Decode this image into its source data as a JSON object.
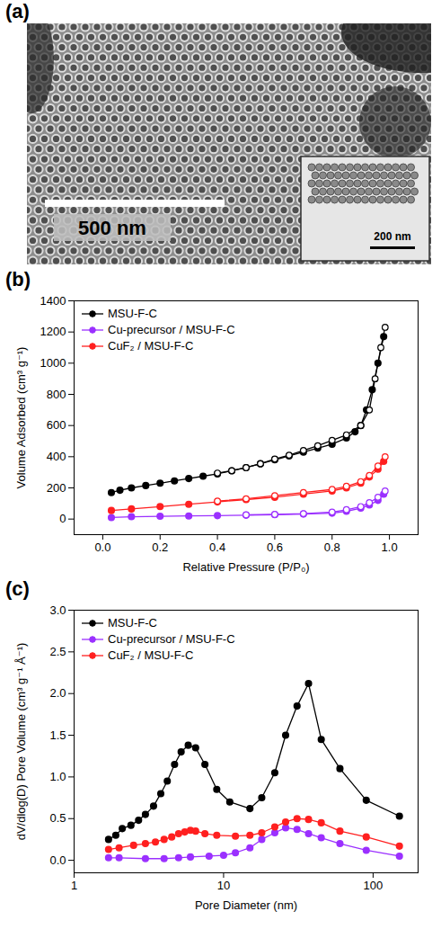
{
  "image": {
    "panel_label": "(a)",
    "scale_bar": "500 nm",
    "inset_scale_bar": "200 nm"
  },
  "chart_data": [
    {
      "type": "line",
      "panel_label": "(b)",
      "xlabel": "Relative Pressure (P/P₀)",
      "ylabel": "Volume Adsorbed (cm³ g⁻¹)",
      "xlim": [
        -0.1,
        1.1
      ],
      "xticks": [
        {
          "value": 0,
          "label": "0.0"
        },
        {
          "value": 0.2,
          "label": "0.2"
        },
        {
          "value": 0.4,
          "label": "0.4"
        },
        {
          "value": 0.6,
          "label": "0.6"
        },
        {
          "value": 0.8,
          "label": "0.8"
        },
        {
          "value": 1,
          "label": "1.0"
        }
      ],
      "ylim": [
        -100,
        1400
      ],
      "yticks": [
        0,
        200,
        400,
        600,
        800,
        1000,
        1200,
        1400
      ],
      "grid": false,
      "legend": "top-left",
      "series": [
        {
          "name": "MSU-F-C",
          "color": "#000000",
          "marker": "circle",
          "x": [
            0.03,
            0.06,
            0.1,
            0.15,
            0.2,
            0.25,
            0.3,
            0.35,
            0.4,
            0.45,
            0.5,
            0.55,
            0.6,
            0.65,
            0.7,
            0.75,
            0.8,
            0.85,
            0.88,
            0.9,
            0.92,
            0.94,
            0.96,
            0.98
          ],
          "values": [
            170,
            185,
            200,
            215,
            230,
            245,
            260,
            275,
            290,
            310,
            330,
            355,
            380,
            405,
            430,
            455,
            480,
            520,
            560,
            600,
            700,
            830,
            1000,
            1170
          ],
          "desorption": {
            "x": [
              0.985,
              0.97,
              0.95,
              0.93,
              0.9,
              0.85,
              0.8,
              0.75,
              0.7,
              0.65,
              0.6,
              0.55,
              0.5,
              0.45,
              0.4
            ],
            "values": [
              1230,
              1100,
              900,
              700,
              600,
              540,
              505,
              470,
              440,
              410,
              385,
              355,
              330,
              310,
              295
            ]
          }
        },
        {
          "name": "Cu-precursor / MSU-F-C",
          "color": "#9b30ff",
          "marker": "circle",
          "x": [
            0.03,
            0.1,
            0.2,
            0.3,
            0.4,
            0.5,
            0.6,
            0.7,
            0.8,
            0.85,
            0.9,
            0.93,
            0.96,
            0.98
          ],
          "values": [
            10,
            15,
            18,
            20,
            22,
            25,
            28,
            32,
            38,
            50,
            70,
            90,
            120,
            160
          ],
          "desorption": {
            "x": [
              0.985,
              0.96,
              0.93,
              0.9,
              0.85,
              0.8,
              0.7,
              0.6,
              0.5
            ],
            "values": [
              180,
              140,
              105,
              80,
              60,
              45,
              35,
              30,
              27
            ]
          }
        },
        {
          "name": "CuF₂ / MSU-F-C",
          "color": "#ff2020",
          "marker": "circle",
          "x": [
            0.03,
            0.1,
            0.2,
            0.3,
            0.4,
            0.5,
            0.6,
            0.7,
            0.8,
            0.85,
            0.9,
            0.93,
            0.96,
            0.98
          ],
          "values": [
            55,
            65,
            80,
            95,
            110,
            125,
            140,
            160,
            180,
            200,
            230,
            270,
            320,
            370
          ],
          "desorption": {
            "x": [
              0.985,
              0.96,
              0.93,
              0.9,
              0.85,
              0.8,
              0.7,
              0.6,
              0.5,
              0.4
            ],
            "values": [
              400,
              340,
              280,
              240,
              210,
              190,
              170,
              150,
              130,
              115
            ]
          }
        }
      ]
    },
    {
      "type": "line",
      "panel_label": "(c)",
      "xlabel": "Pore Diameter (nm)",
      "ylabel": "dV/dlog(D) Pore Volume (cm³ g⁻¹ Å⁻¹)",
      "log": "x",
      "xlim": [
        1,
        200
      ],
      "xticks": [
        1,
        10,
        100
      ],
      "ylim": [
        -0.15,
        3.0
      ],
      "yticks": [
        {
          "value": 0,
          "label": "0.0"
        },
        {
          "value": 0.5,
          "label": "0.5"
        },
        {
          "value": 1,
          "label": "1.0"
        },
        {
          "value": 1.5,
          "label": "1.5"
        },
        {
          "value": 2,
          "label": "2.0"
        },
        {
          "value": 2.5,
          "label": "2.5"
        },
        {
          "value": 3,
          "label": "3.0"
        }
      ],
      "grid": false,
      "legend": "top-left",
      "series": [
        {
          "name": "MSU-F-C",
          "color": "#000000",
          "marker": "circle",
          "x": [
            1.7,
            1.9,
            2.1,
            2.4,
            2.7,
            3.0,
            3.4,
            3.8,
            4.2,
            4.7,
            5.2,
            5.8,
            6.5,
            7.5,
            9,
            11,
            15,
            18,
            22,
            26,
            31,
            37,
            45,
            60,
            90,
            150
          ],
          "values": [
            0.25,
            0.3,
            0.38,
            0.42,
            0.48,
            0.55,
            0.65,
            0.8,
            0.95,
            1.15,
            1.3,
            1.38,
            1.35,
            1.15,
            0.85,
            0.7,
            0.62,
            0.75,
            1.05,
            1.5,
            1.85,
            2.12,
            1.45,
            1.1,
            0.72,
            0.53
          ]
        },
        {
          "name": "Cu-precursor / MSU-F-C",
          "color": "#9b30ff",
          "marker": "circle",
          "x": [
            1.7,
            2,
            3,
            4,
            5,
            6,
            8,
            10,
            12,
            15,
            18,
            22,
            26,
            31,
            37,
            45,
            60,
            90,
            150
          ],
          "values": [
            0.03,
            0.03,
            0.02,
            0.02,
            0.03,
            0.04,
            0.05,
            0.06,
            0.09,
            0.15,
            0.25,
            0.33,
            0.39,
            0.37,
            0.32,
            0.27,
            0.2,
            0.12,
            0.05
          ]
        },
        {
          "name": "CuF₂ / MSU-F-C",
          "color": "#ff2020",
          "marker": "circle",
          "x": [
            1.7,
            2,
            2.5,
            3,
            3.5,
            4,
            4.5,
            5,
            5.5,
            6,
            6.5,
            7.5,
            9,
            12,
            15,
            18,
            22,
            26,
            31,
            37,
            45,
            60,
            90,
            150
          ],
          "values": [
            0.13,
            0.15,
            0.18,
            0.2,
            0.22,
            0.25,
            0.28,
            0.32,
            0.34,
            0.36,
            0.35,
            0.32,
            0.3,
            0.29,
            0.3,
            0.33,
            0.4,
            0.46,
            0.5,
            0.49,
            0.45,
            0.35,
            0.28,
            0.17
          ]
        }
      ]
    }
  ]
}
